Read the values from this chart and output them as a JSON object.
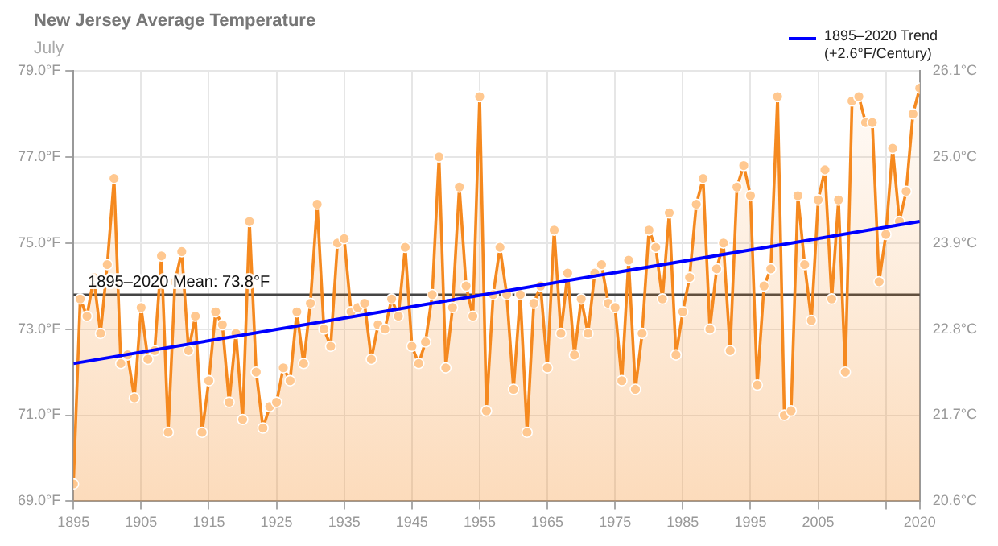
{
  "chart_data": {
    "type": "area",
    "title": "New Jersey Average Temperature",
    "subtitle": "July",
    "x": [
      1895,
      1896,
      1897,
      1898,
      1899,
      1900,
      1901,
      1902,
      1903,
      1904,
      1905,
      1906,
      1907,
      1908,
      1909,
      1910,
      1911,
      1912,
      1913,
      1914,
      1915,
      1916,
      1917,
      1918,
      1919,
      1920,
      1921,
      1922,
      1923,
      1924,
      1925,
      1926,
      1927,
      1928,
      1929,
      1930,
      1931,
      1932,
      1933,
      1934,
      1935,
      1936,
      1937,
      1938,
      1939,
      1940,
      1941,
      1942,
      1943,
      1944,
      1945,
      1946,
      1947,
      1948,
      1949,
      1950,
      1951,
      1952,
      1953,
      1954,
      1955,
      1956,
      1957,
      1958,
      1959,
      1960,
      1961,
      1962,
      1963,
      1964,
      1965,
      1966,
      1967,
      1968,
      1969,
      1970,
      1971,
      1972,
      1973,
      1974,
      1975,
      1976,
      1977,
      1978,
      1979,
      1980,
      1981,
      1982,
      1983,
      1984,
      1985,
      1986,
      1987,
      1988,
      1989,
      1990,
      1991,
      1992,
      1993,
      1994,
      1995,
      1996,
      1997,
      1998,
      1999,
      2000,
      2001,
      2002,
      2003,
      2004,
      2005,
      2006,
      2007,
      2008,
      2009,
      2010,
      2011,
      2012,
      2013,
      2014,
      2015,
      2016,
      2017,
      2018,
      2019,
      2020
    ],
    "series": [
      {
        "color": "#f5891f",
        "values": [
          69.4,
          73.7,
          73.3,
          74.2,
          72.9,
          74.5,
          76.5,
          72.2,
          72.4,
          71.4,
          73.5,
          72.3,
          72.5,
          74.7,
          70.6,
          74.1,
          74.8,
          72.5,
          73.3,
          70.6,
          71.8,
          73.4,
          73.1,
          71.3,
          72.9,
          70.9,
          75.5,
          72.0,
          70.7,
          71.2,
          71.3,
          72.1,
          71.8,
          73.4,
          72.2,
          73.6,
          75.9,
          73.0,
          72.6,
          75.0,
          75.1,
          73.4,
          73.5,
          73.6,
          72.3,
          73.1,
          73.0,
          73.7,
          73.3,
          74.9,
          72.6,
          72.2,
          72.7,
          73.8,
          77.0,
          72.1,
          73.5,
          76.3,
          74.0,
          73.3,
          78.4,
          71.1,
          73.8,
          74.9,
          73.8,
          71.6,
          73.8,
          70.6,
          73.6,
          74.0,
          72.1,
          75.3,
          72.9,
          74.3,
          72.4,
          73.7,
          72.9,
          74.3,
          74.5,
          73.6,
          73.5,
          71.8,
          74.6,
          71.6,
          72.9,
          75.3,
          74.9,
          73.7,
          75.7,
          72.4,
          73.4,
          74.2,
          75.9,
          76.5,
          73.0,
          74.4,
          75.0,
          72.5,
          76.3,
          76.8,
          76.1,
          71.7,
          74.0,
          74.4,
          78.4,
          71.0,
          71.1,
          76.1,
          74.5,
          73.2,
          76.0,
          76.7,
          73.7,
          76.0,
          72.0,
          78.3,
          78.4,
          77.8,
          77.8,
          74.1,
          75.2,
          77.2,
          75.5,
          76.2,
          78.0,
          78.6
        ]
      },
      {
        "type": "line",
        "name": "1895–2020 Trend (+2.6°F/Century)",
        "color": "#0000ff",
        "marker": "none",
        "x": [
          1895,
          2020
        ],
        "values": [
          72.2,
          75.5
        ]
      }
    ],
    "xlim": [
      1895,
      2020
    ],
    "xticks": [
      1895,
      1905,
      1915,
      1925,
      1935,
      1945,
      1955,
      1965,
      1975,
      1985,
      1995,
      2005,
      {
        "value": 2015,
        "label": null
      },
      2020
    ],
    "ylim": [
      69,
      79
    ],
    "yticks": [
      {
        "value": 69,
        "label": "69.0°F"
      },
      {
        "value": 71,
        "label": "71.0°F"
      },
      {
        "value": 73,
        "label": "73.0°F"
      },
      {
        "value": 75,
        "label": "75.0°F"
      },
      {
        "value": 77,
        "label": "77.0°F"
      },
      {
        "value": 79,
        "label": "79.0°F"
      }
    ],
    "y2lim": [
      20.6,
      26.1
    ],
    "y2ticks": [
      {
        "value": 20.6,
        "label": "20.6°C"
      },
      {
        "value": 21.7,
        "label": "21.7°C"
      },
      {
        "value": 22.8,
        "label": "22.8°C"
      },
      {
        "value": 23.9,
        "label": "23.9°C"
      },
      {
        "value": 25.0,
        "label": "25.0°C"
      },
      {
        "value": 26.1,
        "label": "26.1°C"
      }
    ],
    "ref_lines": [
      {
        "axis": "y",
        "value": 73.8,
        "label": "1895–2020 Mean: 73.8°F",
        "color": "#444444"
      }
    ],
    "grid": true,
    "legend": "top right",
    "marker": "circle"
  }
}
